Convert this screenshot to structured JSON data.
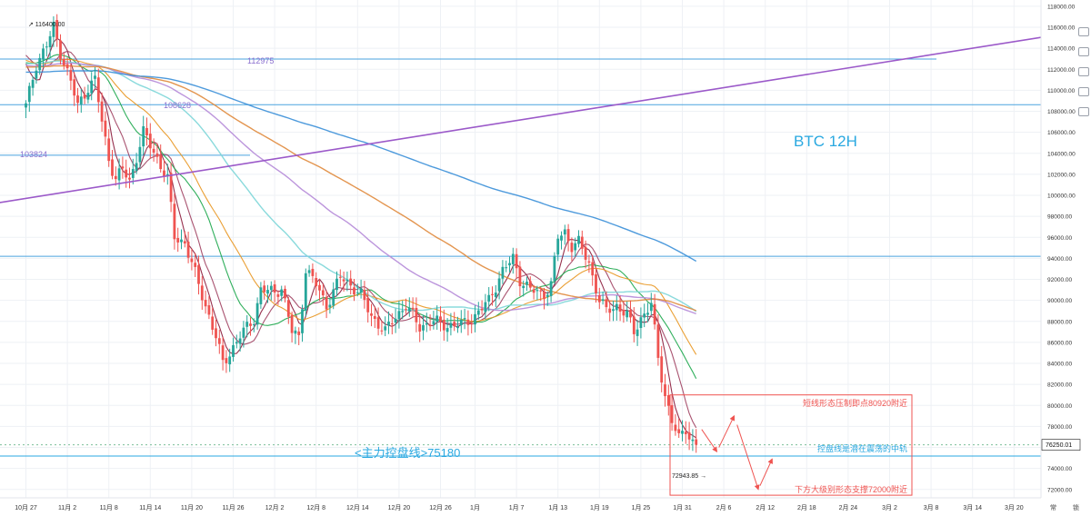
{
  "chart_data": {
    "type": "candlestick",
    "title": "BTC    12H",
    "symbol": "BTC",
    "interval": "12H",
    "ylim": [
      71200,
      118600
    ],
    "y_ticks": [
      72000,
      74000,
      76000,
      78000,
      80000,
      82000,
      84000,
      86000,
      88000,
      90000,
      92000,
      94000,
      96000,
      98000,
      100000,
      102000,
      104000,
      106000,
      108000,
      110000,
      112000,
      114000,
      116000,
      118000
    ],
    "y_tick_labels": [
      "72000.00",
      "74000.00",
      "76000.00",
      "78000.00",
      "80000.00",
      "82000.00",
      "84000.00",
      "86000.00",
      "88000.00",
      "90000.00",
      "92000.00",
      "94000.00",
      "96000.00",
      "98000.00",
      "100000.00",
      "102000.00",
      "104000.00",
      "106000.00",
      "108000.00",
      "110000.00",
      "112000.00",
      "114000.00",
      "116000.00",
      "118000.00"
    ],
    "x_tick_labels": [
      "10月 27",
      "11月 2",
      "11月 8",
      "11月 14",
      "11月 20",
      "11月 26",
      "12月 2",
      "12月 8",
      "12月 14",
      "12月 20",
      "12月 26",
      "1月",
      "1月 7",
      "1月 13",
      "1月 19",
      "1月 25",
      "1月 31",
      "2月 6",
      "2月 12",
      "2月 18",
      "2月 24",
      "3月 2",
      "3月 8",
      "3月 14",
      "3月 20"
    ],
    "x_tick_index": [
      0,
      12,
      24,
      36,
      48,
      60,
      72,
      84,
      96,
      108,
      120,
      130,
      142,
      154,
      166,
      178,
      190,
      202,
      214,
      226,
      238,
      250,
      262,
      274,
      286
    ],
    "bar_count_visible": 300,
    "last_price": 76250.01,
    "last_price_label": "76250.01",
    "scale_label": "常",
    "log_toggle_label": "锁",
    "price_anchors": [
      {
        "i": 0,
        "p": 108500
      },
      {
        "i": 3,
        "p": 112500
      },
      {
        "i": 6,
        "p": 114300
      },
      {
        "i": 8,
        "p": 116000
      },
      {
        "i": 10,
        "p": 113600
      },
      {
        "i": 13,
        "p": 110800
      },
      {
        "i": 15,
        "p": 108500
      },
      {
        "i": 18,
        "p": 110300
      },
      {
        "i": 20,
        "p": 111000
      },
      {
        "i": 22,
        "p": 107000
      },
      {
        "i": 24,
        "p": 103500
      },
      {
        "i": 26,
        "p": 101500
      },
      {
        "i": 28,
        "p": 102500
      },
      {
        "i": 30,
        "p": 101300
      },
      {
        "i": 34,
        "p": 106000
      },
      {
        "i": 38,
        "p": 103500
      },
      {
        "i": 41,
        "p": 101600
      },
      {
        "i": 43,
        "p": 96000
      },
      {
        "i": 46,
        "p": 95500
      },
      {
        "i": 49,
        "p": 92500
      },
      {
        "i": 52,
        "p": 89500
      },
      {
        "i": 55,
        "p": 86500
      },
      {
        "i": 57,
        "p": 84000
      },
      {
        "i": 59,
        "p": 85000
      },
      {
        "i": 62,
        "p": 86600
      },
      {
        "i": 66,
        "p": 88300
      },
      {
        "i": 68,
        "p": 91000
      },
      {
        "i": 72,
        "p": 90800
      },
      {
        "i": 74,
        "p": 91200
      },
      {
        "i": 77,
        "p": 87000
      },
      {
        "i": 79,
        "p": 86500
      },
      {
        "i": 81,
        "p": 93000
      },
      {
        "i": 84,
        "p": 91500
      },
      {
        "i": 87,
        "p": 89500
      },
      {
        "i": 91,
        "p": 92200
      },
      {
        "i": 94,
        "p": 91500
      },
      {
        "i": 97,
        "p": 90500
      },
      {
        "i": 100,
        "p": 88500
      },
      {
        "i": 104,
        "p": 87000
      },
      {
        "i": 107,
        "p": 88500
      },
      {
        "i": 110,
        "p": 89500
      },
      {
        "i": 114,
        "p": 87500
      },
      {
        "i": 118,
        "p": 88000
      },
      {
        "i": 122,
        "p": 87600
      },
      {
        "i": 126,
        "p": 87700
      },
      {
        "i": 130,
        "p": 88500
      },
      {
        "i": 134,
        "p": 90000
      },
      {
        "i": 138,
        "p": 92800
      },
      {
        "i": 141,
        "p": 94000
      },
      {
        "i": 143,
        "p": 92000
      },
      {
        "i": 146,
        "p": 91000
      },
      {
        "i": 150,
        "p": 90600
      },
      {
        "i": 152,
        "p": 91500
      },
      {
        "i": 154,
        "p": 96000
      },
      {
        "i": 156,
        "p": 96500
      },
      {
        "i": 158,
        "p": 95200
      },
      {
        "i": 160,
        "p": 95500
      },
      {
        "i": 163,
        "p": 93500
      },
      {
        "i": 166,
        "p": 90000
      },
      {
        "i": 168,
        "p": 89000
      },
      {
        "i": 171,
        "p": 89500
      },
      {
        "i": 174,
        "p": 88600
      },
      {
        "i": 176,
        "p": 87000
      },
      {
        "i": 178,
        "p": 88300
      },
      {
        "i": 181,
        "p": 89600
      },
      {
        "i": 183,
        "p": 84500
      },
      {
        "i": 185,
        "p": 81000
      },
      {
        "i": 187,
        "p": 78500
      },
      {
        "i": 189,
        "p": 76800
      },
      {
        "i": 191,
        "p": 77800
      },
      {
        "i": 193,
        "p": 76500
      },
      {
        "i": 194,
        "p": 76250
      }
    ],
    "high_marker": {
      "label": "116400.00",
      "price": 116400,
      "index": 8
    },
    "low_marker": {
      "label": "72943.85",
      "price": 72943.85,
      "index": 191
    },
    "horizontal_levels": [
      {
        "price": 112975,
        "label": "112975",
        "color": "#4aa3df"
      },
      {
        "price": 108628,
        "label": "108628",
        "color": "#4aa3df"
      },
      {
        "price": 103824,
        "label": "103824",
        "color": "#4aa3df"
      },
      {
        "price": 94200,
        "label": "",
        "color": "#4aa3df"
      },
      {
        "price": 75180,
        "label": "<主力控盘线>75180",
        "color": "#29a8e0"
      }
    ],
    "trendline": {
      "color": "#9b59c9",
      "from": {
        "i": 0,
        "p": 99300
      },
      "to": {
        "i": 300,
        "p": 115800
      }
    },
    "moving_averages": [
      {
        "color": "#8b1a3a",
        "period": 5
      },
      {
        "color": "#a04060",
        "period": 10
      },
      {
        "color": "#1aa64a",
        "period": 20
      },
      {
        "color": "#e8951e",
        "period": 30
      },
      {
        "color": "#7dd6d8",
        "period": 60
      },
      {
        "color": "#b58ad8",
        "period": 90
      },
      {
        "color": "#e08a3c",
        "period": 120
      },
      {
        "color": "#3a8fd8",
        "period": 200
      }
    ],
    "colors": {
      "up": "#26a69a",
      "down": "#ef5350",
      "grid": "#eef1f5",
      "axis_text": "#333333",
      "title": "#29a8e0",
      "annotation": "#ef5350",
      "annotation_blue": "#29a8e0",
      "box": "#ef5350"
    },
    "annotation_box": {
      "top_price": 81000,
      "bottom_price": 71450
    },
    "annotations": [
      {
        "text": "短线形态压制即点80920附近",
        "color": "#ef5350"
      },
      {
        "text": "控盘线是潜在震荡的中轨",
        "color": "#29a8e0"
      },
      {
        "text": "下方大级别形态支撑72000附近",
        "color": "#ef5350"
      }
    ],
    "projected_path": [
      {
        "i": 195,
        "p": 78000
      },
      {
        "i": 200,
        "p": 75600
      },
      {
        "i": 205,
        "p": 79000
      },
      {
        "i": 212,
        "p": 72000
      },
      {
        "i": 216,
        "p": 74900
      }
    ]
  }
}
